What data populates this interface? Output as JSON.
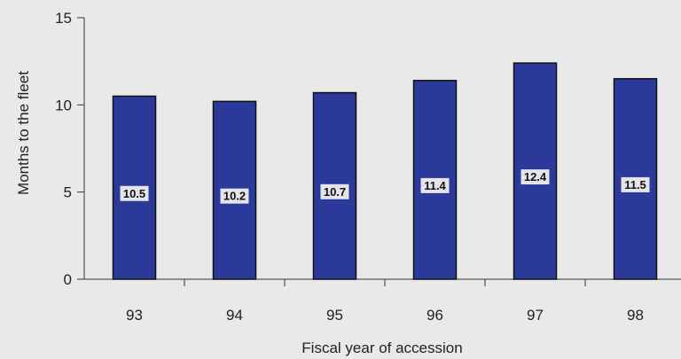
{
  "chart_data": {
    "type": "bar",
    "title": "",
    "xlabel": "Fiscal year of accession",
    "ylabel": "Months to the fleet",
    "categories": [
      "93",
      "94",
      "95",
      "96",
      "97",
      "98"
    ],
    "values": [
      10.5,
      10.2,
      10.7,
      11.4,
      12.4,
      11.5
    ],
    "data_labels": [
      "10.5",
      "10.2",
      "10.7",
      "11.4",
      "12.4",
      "11.5"
    ],
    "ylim": [
      0,
      15
    ],
    "yticks": [
      0,
      5,
      10,
      15
    ],
    "grid": false,
    "legend": "none",
    "bar_color": "#2b3a9a"
  }
}
